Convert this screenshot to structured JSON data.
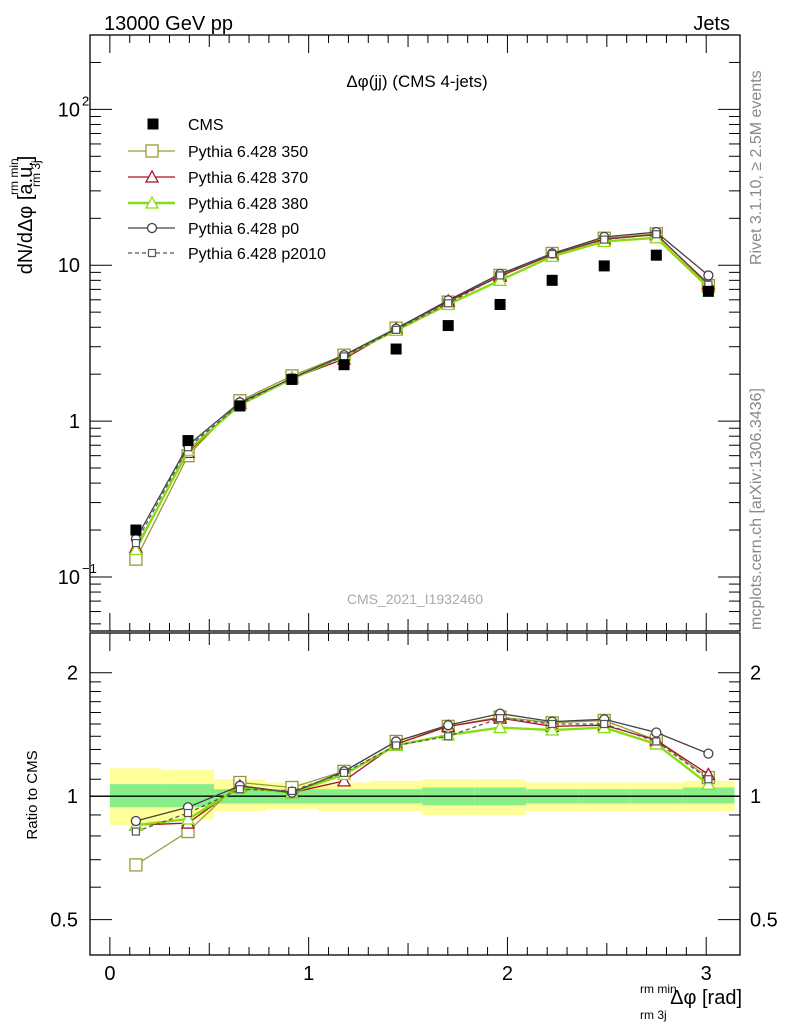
{
  "header": {
    "left": "13000 GeV pp",
    "right": "Jets"
  },
  "side": {
    "rivet": "Rivet 3.1.10, ≥ 2.5M events",
    "mcplots": "mcplots.cern.ch [arXiv:1306.3436]"
  },
  "watermark": "CMS_2021_I1932460",
  "chart_data": [
    {
      "type": "line",
      "title": "Δφ(jj) (CMS 4-jets)",
      "ylabel": "dN/dΔφ [a.u.]",
      "ylabel_sup": "rm min",
      "ylabel_sub": "rm 3j",
      "yscale": "log",
      "xlim": [
        -0.1,
        3.17
      ],
      "ylim": [
        0.045,
        300
      ],
      "yticks": [
        {
          "value": 0.1,
          "label": "10",
          "exp": "−1"
        },
        {
          "value": 1,
          "label": "1",
          "exp": ""
        },
        {
          "value": 10,
          "label": "10",
          "exp": ""
        },
        {
          "value": 100,
          "label": "10",
          "exp": "2"
        }
      ],
      "x": [
        0.131,
        0.393,
        0.654,
        0.916,
        1.178,
        1.44,
        1.702,
        1.963,
        2.225,
        2.487,
        2.749,
        3.011
      ],
      "data": {
        "name": "CMS",
        "color": "#000000",
        "values": [
          0.2,
          0.75,
          1.25,
          1.85,
          2.3,
          2.9,
          4.1,
          5.6,
          8.0,
          9.9,
          11.6,
          6.8
        ]
      },
      "series": [
        {
          "name": "Pythia 6.428 350",
          "color": "#999933",
          "marker": "square",
          "dash": "",
          "values": [
            0.13,
            0.6,
            1.35,
            1.95,
            2.65,
            3.95,
            5.8,
            8.6,
            11.9,
            14.9,
            15.9,
            7.4
          ]
        },
        {
          "name": "Pythia 6.428 370",
          "color": "#aa1122",
          "marker": "triangle",
          "dash": "",
          "values": [
            0.155,
            0.63,
            1.3,
            1.88,
            2.5,
            3.9,
            5.9,
            8.5,
            11.7,
            14.7,
            15.7,
            7.6
          ]
        },
        {
          "name": "Pythia 6.428 380",
          "color": "#88dd11",
          "marker": "triangle",
          "dash": "",
          "values": [
            0.15,
            0.65,
            1.27,
            1.87,
            2.62,
            3.82,
            5.6,
            8.0,
            11.4,
            14.2,
            15.0,
            7.2
          ]
        },
        {
          "name": "Pythia 6.428 p0",
          "color": "#444444",
          "marker": "circle",
          "dash": "",
          "values": [
            0.175,
            0.7,
            1.32,
            1.88,
            2.65,
            3.92,
            5.95,
            8.8,
            11.9,
            15.2,
            16.3,
            8.6
          ]
        },
        {
          "name": "Pythia 6.428 p2010",
          "color": "#555555",
          "marker": "square-small",
          "dash": "4,3",
          "values": [
            0.165,
            0.68,
            1.28,
            1.9,
            2.6,
            3.85,
            5.7,
            8.6,
            11.8,
            14.6,
            15.8,
            7.5
          ]
        }
      ]
    },
    {
      "type": "line",
      "ylabel": "Ratio to CMS",
      "xlabel": "Δφ [rad]",
      "xlabel_sup": "rm min",
      "xlabel_sub": "rm 3j",
      "yscale": "log",
      "xlim": [
        -0.1,
        3.17
      ],
      "ylim": [
        0.41,
        2.5
      ],
      "yticks": [
        {
          "value": 0.5,
          "label": "0.5"
        },
        {
          "value": 1,
          "label": "1"
        },
        {
          "value": 2,
          "label": "2"
        }
      ],
      "xticks": [
        {
          "value": 0,
          "label": "0"
        },
        {
          "value": 1,
          "label": "1"
        },
        {
          "value": 2,
          "label": "2"
        },
        {
          "value": 3,
          "label": "3"
        }
      ],
      "x": [
        0.131,
        0.393,
        0.654,
        0.916,
        1.178,
        1.44,
        1.702,
        1.963,
        2.225,
        2.487,
        2.749,
        3.011
      ],
      "bin_edges": [
        0,
        0.262,
        0.524,
        0.785,
        1.047,
        1.309,
        1.571,
        1.833,
        2.094,
        2.356,
        2.618,
        2.88,
        3.142
      ],
      "band_yellow": [
        [
          0.85,
          1.17
        ],
        [
          0.88,
          1.16
        ],
        [
          0.92,
          1.1
        ],
        [
          0.93,
          1.08
        ],
        [
          0.92,
          1.08
        ],
        [
          0.92,
          1.09
        ],
        [
          0.9,
          1.1
        ],
        [
          0.9,
          1.1
        ],
        [
          0.92,
          1.08
        ],
        [
          0.92,
          1.08
        ],
        [
          0.92,
          1.08
        ],
        [
          0.92,
          1.09
        ]
      ],
      "band_green": [
        [
          0.94,
          1.07
        ],
        [
          0.94,
          1.07
        ],
        [
          0.96,
          1.04
        ],
        [
          0.96,
          1.04
        ],
        [
          0.96,
          1.04
        ],
        [
          0.96,
          1.04
        ],
        [
          0.95,
          1.05
        ],
        [
          0.95,
          1.05
        ],
        [
          0.96,
          1.04
        ],
        [
          0.96,
          1.04
        ],
        [
          0.96,
          1.04
        ],
        [
          0.96,
          1.05
        ]
      ],
      "series": [
        {
          "name": "Pythia 6.428 350",
          "values": [
            0.68,
            0.82,
            1.08,
            1.05,
            1.15,
            1.36,
            1.48,
            1.56,
            1.51,
            1.53,
            1.37,
            1.11
          ]
        },
        {
          "name": "Pythia 6.428 370",
          "values": [
            0.85,
            0.86,
            1.06,
            1.02,
            1.09,
            1.34,
            1.48,
            1.55,
            1.48,
            1.49,
            1.37,
            1.13
          ]
        },
        {
          "name": "Pythia 6.428 380",
          "values": [
            0.85,
            0.88,
            1.05,
            1.02,
            1.13,
            1.33,
            1.41,
            1.47,
            1.45,
            1.47,
            1.34,
            1.07
          ]
        },
        {
          "name": "Pythia 6.428 p0",
          "values": [
            0.87,
            0.94,
            1.06,
            1.02,
            1.15,
            1.36,
            1.49,
            1.59,
            1.52,
            1.54,
            1.43,
            1.27
          ]
        },
        {
          "name": "Pythia 6.428 p2010",
          "values": [
            0.82,
            0.91,
            1.04,
            1.03,
            1.14,
            1.33,
            1.4,
            1.55,
            1.5,
            1.5,
            1.36,
            1.1
          ]
        }
      ]
    }
  ]
}
